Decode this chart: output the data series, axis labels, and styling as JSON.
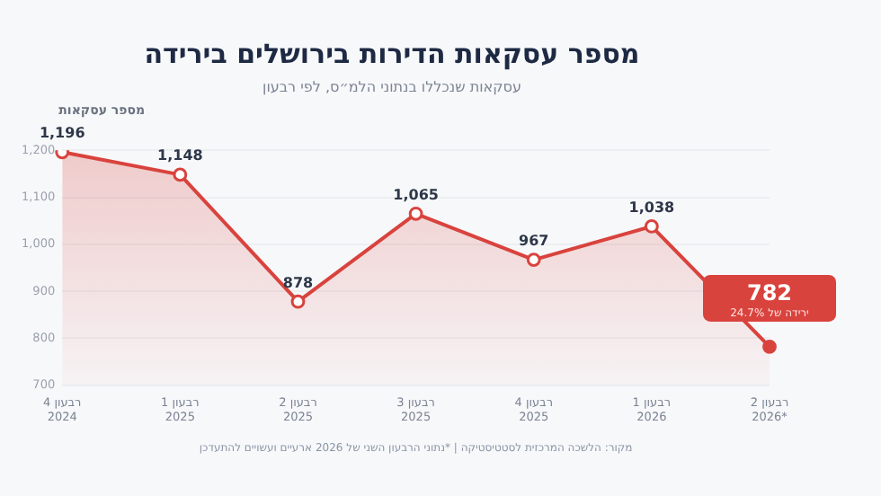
{
  "chart_data": {
    "type": "area",
    "title": "מספר עסקאות הדירות בירושלים בירידה",
    "subtitle": "עסקאות שנכללו בנתוני הלמ״ס, לפי רבעון",
    "ylabel": "מספר עסקאות",
    "categories": [
      "רבעון 4\n2024",
      "רבעון 1\n2025",
      "רבעון 2\n2025",
      "רבעון 3\n2025",
      "רבעון 4\n2025",
      "רבעון 1\n2026",
      "רבעון 2\n2026*"
    ],
    "series": [
      {
        "color": "#d9433d",
        "values": [
          1196,
          1148,
          878,
          1065,
          967,
          1038,
          782
        ]
      }
    ],
    "value_labels": [
      "1,196",
      "1,148",
      "878",
      "1,065",
      "967",
      "1,038",
      "782"
    ],
    "ylim": [
      700,
      1200
    ],
    "yticks": [
      {
        "value": 700,
        "label": "700"
      },
      {
        "value": 800,
        "label": "800"
      },
      {
        "value": 900,
        "label": "900"
      },
      {
        "value": 1000,
        "label": "1,000"
      },
      {
        "value": 1100,
        "label": "1,100"
      },
      {
        "value": 1200,
        "label": "1,200"
      }
    ],
    "grid": "y",
    "marker": "circle",
    "legend": false,
    "annotations": [
      {
        "text": "ירידה של 24.7%",
        "x": "רבעון 2\n2026*",
        "y": 782
      },
      "מקור: הלשכה המרכזית לסטטיסטיקה | *נתוני הרבעון השני של 2026 ארעיים ועשויים להתעדכן"
    ]
  }
}
